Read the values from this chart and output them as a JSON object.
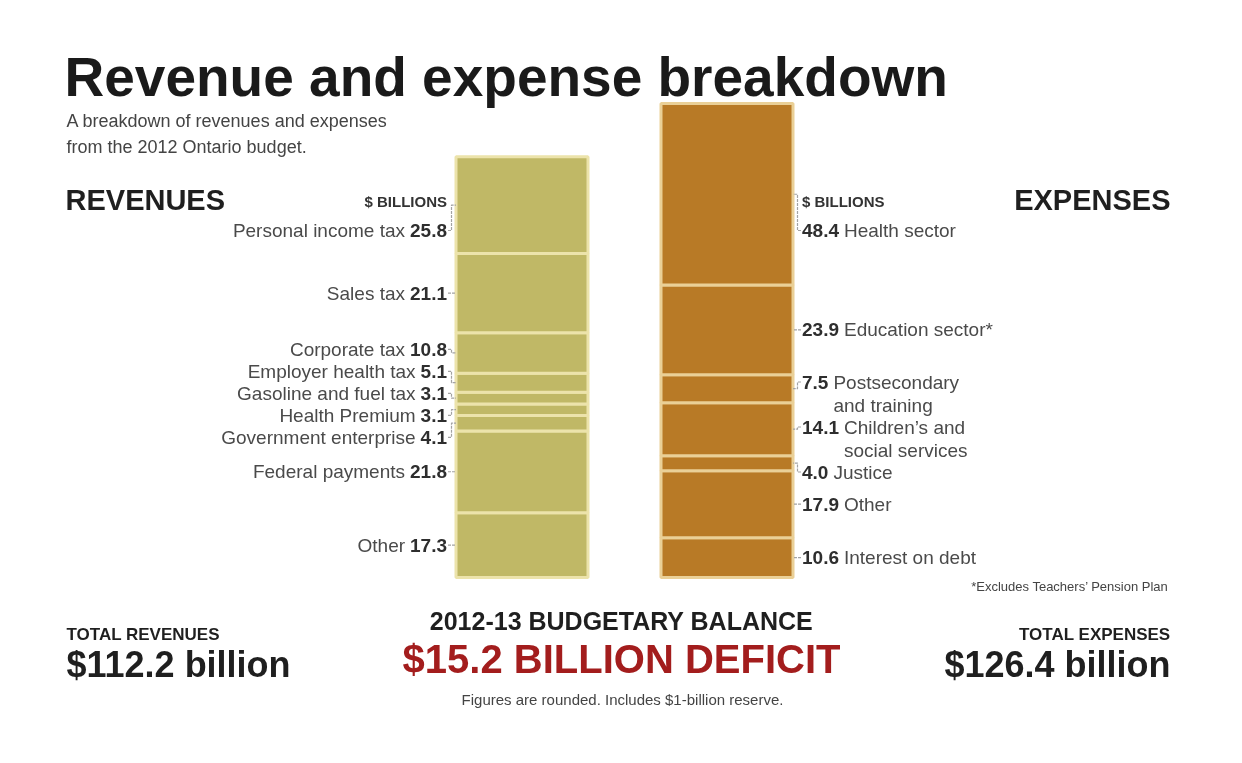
{
  "chart_data": {
    "type": "bar",
    "title": "Revenue and expense breakdown",
    "subtitle": "A breakdown of revenues and expenses from the 2012 Ontario budget.",
    "ylabel": "$ BILLIONS",
    "categories": [
      "REVENUES",
      "EXPENSES"
    ],
    "stacked": true,
    "data_labels": true,
    "series": [
      {
        "name": "Other",
        "color": "#c0b866",
        "values": [
          17.3,
          null
        ]
      },
      {
        "name": "Federal payments",
        "color": "#c0b866",
        "values": [
          21.8,
          null
        ]
      },
      {
        "name": "Government enterprise",
        "color": "#c0b866",
        "values": [
          4.1,
          null
        ]
      },
      {
        "name": "Health Premium",
        "color": "#c0b866",
        "values": [
          3.1,
          null
        ]
      },
      {
        "name": "Gasoline and fuel tax",
        "color": "#c0b866",
        "values": [
          3.1,
          null
        ]
      },
      {
        "name": "Employer health tax",
        "color": "#c0b866",
        "values": [
          5.1,
          null
        ]
      },
      {
        "name": "Corporate tax",
        "color": "#c0b866",
        "values": [
          10.8,
          null
        ]
      },
      {
        "name": "Sales tax",
        "color": "#c0b866",
        "values": [
          21.1,
          null
        ]
      },
      {
        "name": "Personal income tax",
        "color": "#c0b866",
        "values": [
          25.8,
          null
        ]
      },
      {
        "name": "Interest on debt",
        "color": "#b87a26",
        "values": [
          null,
          10.6
        ]
      },
      {
        "name": "Other",
        "color": "#b87a26",
        "values": [
          null,
          17.9
        ]
      },
      {
        "name": "Justice",
        "color": "#b87a26",
        "values": [
          null,
          4.0
        ],
        "value_labels": [
          null,
          "4.0"
        ]
      },
      {
        "name": "Children’s and social services",
        "color": "#b87a26",
        "values": [
          null,
          14.1
        ]
      },
      {
        "name": "Postsecondary and training",
        "color": "#b87a26",
        "values": [
          null,
          7.5
        ]
      },
      {
        "name": "Education sector*",
        "color": "#b87a26",
        "values": [
          null,
          23.9
        ]
      },
      {
        "name": "Health sector",
        "color": "#b87a26",
        "values": [
          null,
          48.4
        ]
      }
    ],
    "annotations": [
      "TOTAL REVENUES",
      "$112.2 billion",
      "TOTAL EXPENSES",
      "$126.4 billion",
      "2012-13 BUDGETARY BALANCE",
      "$15.2 BILLION DEFICIT",
      "Figures are rounded. Includes $1-billion reserve.",
      "*Excludes Teachers’ Pension Plan"
    ]
  }
}
